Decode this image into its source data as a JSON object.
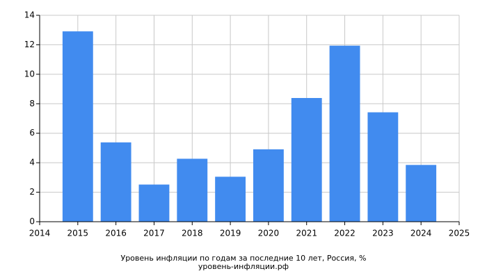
{
  "chart_data": {
    "type": "bar",
    "title": "Уровень инфляции по годам за последние 10 лет, Россия, %",
    "subtitle": "уровень-инфляции.рф",
    "x": [
      2015,
      2016,
      2017,
      2018,
      2019,
      2020,
      2021,
      2022,
      2023,
      2024
    ],
    "values": [
      12.91,
      5.38,
      2.52,
      4.27,
      3.05,
      4.91,
      8.39,
      11.94,
      7.42,
      3.85
    ],
    "color": "#418bef",
    "xlim": [
      2014,
      2025
    ],
    "xticks": [
      2014,
      2015,
      2016,
      2017,
      2018,
      2019,
      2020,
      2021,
      2022,
      2023,
      2024,
      2025
    ],
    "ylim": [
      0,
      14
    ],
    "yticks": [
      0,
      2,
      4,
      6,
      8,
      10,
      12,
      14
    ],
    "grid": true
  }
}
